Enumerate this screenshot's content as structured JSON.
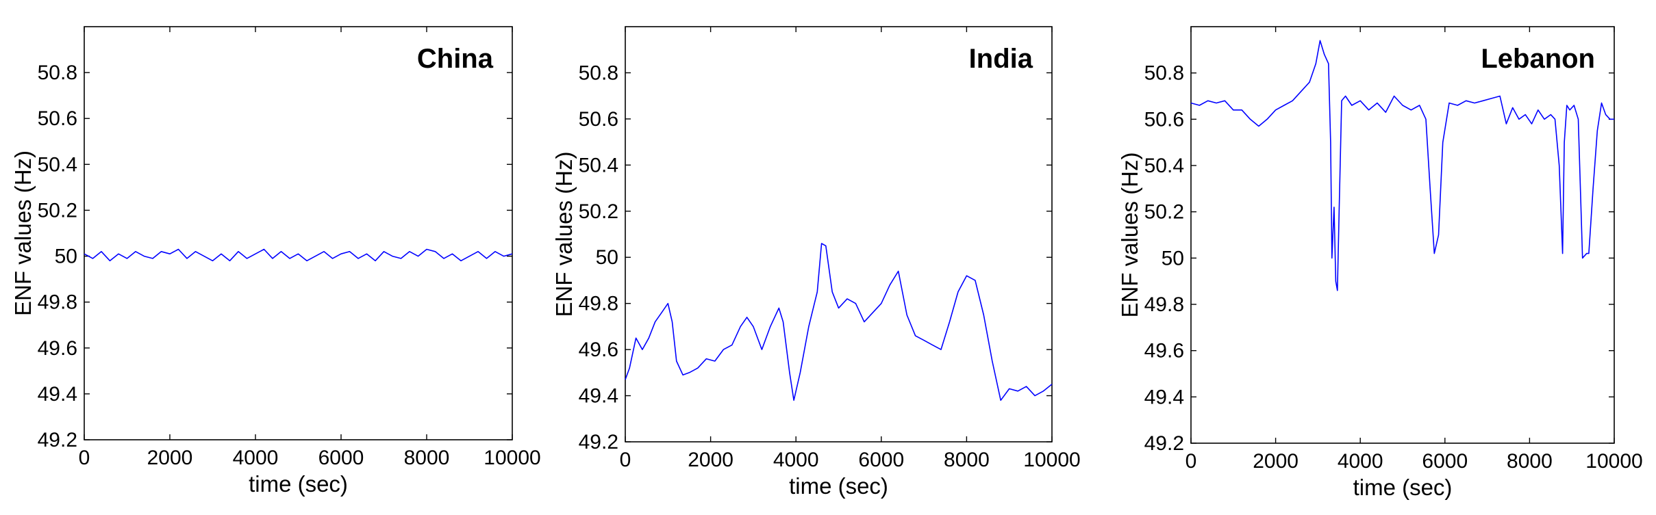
{
  "chart_data": [
    {
      "type": "line",
      "title": "China",
      "xlabel": "time (sec)",
      "ylabel": "ENF values (Hz)",
      "xlim": [
        0,
        10000
      ],
      "ylim": [
        49.2,
        51.0
      ],
      "xticks": [
        0,
        2000,
        4000,
        6000,
        8000,
        10000
      ],
      "yticks": [
        49.2,
        49.4,
        49.6,
        49.8,
        50,
        50.2,
        50.4,
        50.6,
        50.8
      ],
      "line_color": "#0000ff",
      "series": [
        {
          "x": [
            0,
            200,
            400,
            600,
            800,
            1000,
            1200,
            1400,
            1600,
            1800,
            2000,
            2200,
            2400,
            2600,
            2800,
            3000,
            3200,
            3400,
            3600,
            3800,
            4000,
            4200,
            4400,
            4600,
            4800,
            5000,
            5200,
            5400,
            5600,
            5800,
            6000,
            6200,
            6400,
            6600,
            6800,
            7000,
            7200,
            7400,
            7600,
            7800,
            8000,
            8200,
            8400,
            8600,
            8800,
            9000,
            9200,
            9400,
            9600,
            9800,
            10000
          ],
          "y": [
            50.01,
            49.99,
            50.02,
            49.98,
            50.01,
            49.99,
            50.02,
            50.0,
            49.99,
            50.02,
            50.01,
            50.03,
            49.99,
            50.02,
            50.0,
            49.98,
            50.01,
            49.98,
            50.02,
            49.99,
            50.01,
            50.03,
            49.99,
            50.02,
            49.99,
            50.01,
            49.98,
            50.0,
            50.02,
            49.99,
            50.01,
            50.02,
            49.99,
            50.01,
            49.98,
            50.02,
            50.0,
            49.99,
            50.02,
            50.0,
            50.03,
            50.02,
            49.99,
            50.01,
            49.98,
            50.0,
            50.02,
            49.99,
            50.02,
            50.0,
            50.01
          ]
        }
      ]
    },
    {
      "type": "line",
      "title": "India",
      "xlabel": "time (sec)",
      "ylabel": "ENF values (Hz)",
      "xlim": [
        0,
        10000
      ],
      "ylim": [
        49.2,
        51.0
      ],
      "xticks": [
        0,
        2000,
        4000,
        6000,
        8000,
        10000
      ],
      "yticks": [
        49.2,
        49.4,
        49.6,
        49.8,
        50,
        50.2,
        50.4,
        50.6,
        50.8
      ],
      "line_color": "#0000ff",
      "series": [
        {
          "x": [
            0,
            100,
            250,
            400,
            550,
            700,
            850,
            1000,
            1100,
            1200,
            1350,
            1500,
            1700,
            1900,
            2100,
            2300,
            2500,
            2700,
            2850,
            3000,
            3200,
            3400,
            3600,
            3700,
            3850,
            3950,
            4100,
            4300,
            4500,
            4600,
            4700,
            4850,
            5000,
            5200,
            5400,
            5600,
            5800,
            6000,
            6200,
            6400,
            6600,
            6800,
            7000,
            7200,
            7400,
            7600,
            7800,
            8000,
            8200,
            8400,
            8600,
            8800,
            9000,
            9200,
            9400,
            9600,
            9800,
            10000
          ],
          "y": [
            49.47,
            49.52,
            49.65,
            49.6,
            49.65,
            49.72,
            49.76,
            49.8,
            49.72,
            49.55,
            49.49,
            49.5,
            49.52,
            49.56,
            49.55,
            49.6,
            49.62,
            49.7,
            49.74,
            49.7,
            49.6,
            49.7,
            49.78,
            49.72,
            49.5,
            49.38,
            49.5,
            49.7,
            49.85,
            50.06,
            50.05,
            49.85,
            49.78,
            49.82,
            49.8,
            49.72,
            49.76,
            49.8,
            49.88,
            49.94,
            49.75,
            49.66,
            49.64,
            49.62,
            49.6,
            49.72,
            49.85,
            49.92,
            49.9,
            49.75,
            49.55,
            49.38,
            49.43,
            49.42,
            49.44,
            49.4,
            49.42,
            49.45
          ]
        }
      ]
    },
    {
      "type": "line",
      "title": "Lebanon",
      "xlabel": "time (sec)",
      "ylabel": "ENF values (Hz)",
      "xlim": [
        0,
        10000
      ],
      "ylim": [
        49.2,
        51.0
      ],
      "xticks": [
        0,
        2000,
        4000,
        6000,
        8000,
        10000
      ],
      "yticks": [
        49.2,
        49.4,
        49.6,
        49.8,
        50,
        50.2,
        50.4,
        50.6,
        50.8
      ],
      "line_color": "#0000ff",
      "series": [
        {
          "x": [
            0,
            200,
            400,
            600,
            800,
            1000,
            1200,
            1400,
            1600,
            1800,
            2000,
            2200,
            2400,
            2600,
            2800,
            2950,
            3050,
            3150,
            3250,
            3300,
            3330,
            3380,
            3420,
            3460,
            3500,
            3560,
            3650,
            3800,
            4000,
            4200,
            4400,
            4600,
            4800,
            5000,
            5200,
            5400,
            5550,
            5650,
            5750,
            5850,
            5950,
            6100,
            6300,
            6500,
            6700,
            6900,
            7100,
            7300,
            7450,
            7600,
            7750,
            7900,
            8050,
            8200,
            8350,
            8500,
            8600,
            8700,
            8780,
            8820,
            8880,
            8950,
            9050,
            9150,
            9250,
            9350,
            9400,
            9500,
            9600,
            9700,
            9800,
            9900,
            10000
          ],
          "y": [
            50.67,
            50.66,
            50.68,
            50.67,
            50.68,
            50.64,
            50.64,
            50.6,
            50.57,
            50.6,
            50.64,
            50.66,
            50.68,
            50.72,
            50.76,
            50.84,
            50.94,
            50.88,
            50.84,
            50.5,
            50.0,
            50.22,
            49.9,
            49.86,
            50.2,
            50.68,
            50.7,
            50.66,
            50.68,
            50.64,
            50.67,
            50.63,
            50.7,
            50.66,
            50.64,
            50.66,
            50.6,
            50.3,
            50.02,
            50.1,
            50.5,
            50.67,
            50.66,
            50.68,
            50.67,
            50.68,
            50.69,
            50.7,
            50.58,
            50.65,
            50.6,
            50.62,
            50.58,
            50.64,
            50.6,
            50.62,
            50.6,
            50.4,
            50.02,
            50.5,
            50.66,
            50.64,
            50.66,
            50.6,
            50.0,
            50.02,
            50.02,
            50.3,
            50.55,
            50.67,
            50.62,
            50.6,
            50.6
          ]
        }
      ]
    }
  ]
}
